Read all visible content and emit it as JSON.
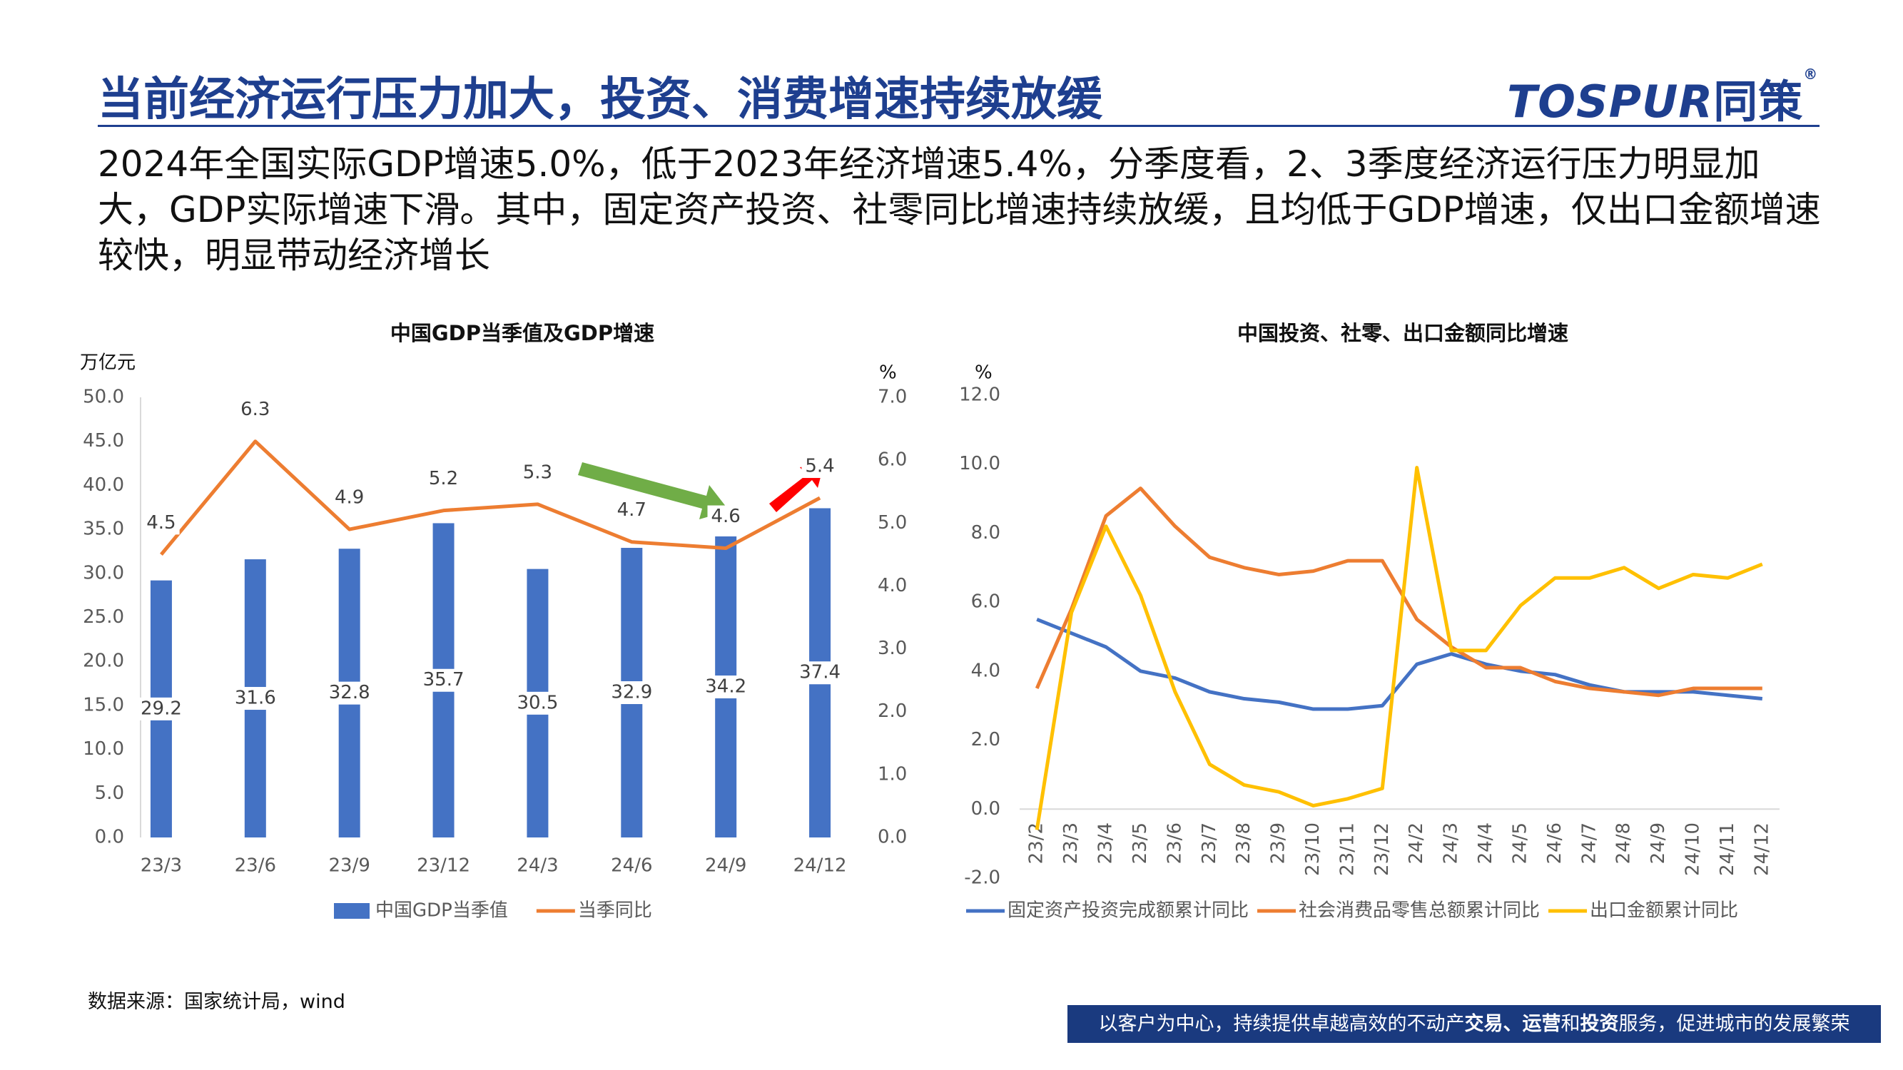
{
  "title": "当前经济运行压力加大，投资、消费增速持续放缓",
  "logo": {
    "text": "TOSPUR",
    "cn": "同策",
    "mark": "®"
  },
  "body": "2024年全国实际GDP增速5.0%，低于2023年经济增速5.4%，分季度看，2、3季度经济运行压力明显加大，GDP实际增速下滑。其中，固定资产投资、社零同比增速持续放缓，且均低于GDP增速，仅出口金额增速较快，明显带动经济增长",
  "chart_data": [
    {
      "type": "combo",
      "title": "中国GDP当季值及GDP增速",
      "y_label": "万亿元",
      "y2_label": "%",
      "categories": [
        "23/3",
        "23/6",
        "23/9",
        "23/12",
        "24/3",
        "24/6",
        "24/9",
        "24/12"
      ],
      "series": [
        {
          "name": "中国GDP当季值",
          "type": "bar",
          "color": "#4472c4",
          "values": [
            29.2,
            31.6,
            32.8,
            35.7,
            30.5,
            32.9,
            34.2,
            37.4
          ]
        },
        {
          "name": "当季同比",
          "type": "line",
          "axis": "y2",
          "color": "#ed7d31",
          "values": [
            4.5,
            6.3,
            4.9,
            5.2,
            5.3,
            4.7,
            4.6,
            5.4
          ]
        }
      ],
      "ylim": [
        0,
        50
      ],
      "yticks": [
        {
          "value": 0,
          "label": "0.0"
        },
        {
          "value": 5,
          "label": "5.0"
        },
        {
          "value": 10,
          "label": "10.0"
        },
        {
          "value": 15,
          "label": "15.0"
        },
        {
          "value": 20,
          "label": "20.0"
        },
        {
          "value": 25,
          "label": "25.0"
        },
        {
          "value": 30,
          "label": "30.0"
        },
        {
          "value": 35,
          "label": "35.0"
        },
        {
          "value": 40,
          "label": "40.0"
        },
        {
          "value": 45,
          "label": "45.0"
        },
        {
          "value": 50,
          "label": "50.0"
        }
      ],
      "y2lim": [
        0,
        7
      ],
      "y2ticks": [
        {
          "value": 0,
          "label": "0.0"
        },
        {
          "value": 1,
          "label": "1.0"
        },
        {
          "value": 2,
          "label": "2.0"
        },
        {
          "value": 3,
          "label": "3.0"
        },
        {
          "value": 4,
          "label": "4.0"
        },
        {
          "value": 5,
          "label": "5.0"
        },
        {
          "value": 6,
          "label": "6.0"
        },
        {
          "value": 7,
          "label": "7.0"
        }
      ],
      "grid": false,
      "legend": "bottom"
    },
    {
      "type": "line",
      "title": "中国投资、社零、出口金额同比增速",
      "y_label": "%",
      "categories": [
        "23/2",
        "23/3",
        "23/4",
        "23/5",
        "23/6",
        "23/7",
        "23/8",
        "23/9",
        "23/10",
        "23/11",
        "23/12",
        "24/2",
        "24/3",
        "24/4",
        "24/5",
        "24/6",
        "24/7",
        "24/8",
        "24/9",
        "24/10",
        "24/11",
        "24/12"
      ],
      "series": [
        {
          "name": "固定资产投资完成额累计同比",
          "color": "#4472c4",
          "values": [
            5.5,
            5.1,
            4.7,
            4.0,
            3.8,
            3.4,
            3.2,
            3.1,
            2.9,
            2.9,
            3.0,
            4.2,
            4.5,
            4.2,
            4.0,
            3.9,
            3.6,
            3.4,
            3.4,
            3.4,
            3.3,
            3.2
          ]
        },
        {
          "name": "社会消费品零售总额累计同比",
          "color": "#ed7d31",
          "values": [
            3.5,
            5.8,
            8.5,
            9.3,
            8.2,
            7.3,
            7.0,
            6.8,
            6.9,
            7.2,
            7.2,
            5.5,
            4.7,
            4.1,
            4.1,
            3.7,
            3.5,
            3.4,
            3.3,
            3.5,
            3.5,
            3.5
          ]
        },
        {
          "name": "出口金额累计同比",
          "color": "#ffc000",
          "values": [
            -0.6,
            5.7,
            8.2,
            6.2,
            3.4,
            1.3,
            0.7,
            0.5,
            0.1,
            0.3,
            0.6,
            9.9,
            4.6,
            4.6,
            5.9,
            6.7,
            6.7,
            7.0,
            6.4,
            6.8,
            6.7,
            7.1
          ]
        }
      ],
      "ylim": [
        -2,
        12
      ],
      "yticks": [
        {
          "value": -2,
          "label": "-2.0"
        },
        {
          "value": 0,
          "label": "0.0"
        },
        {
          "value": 2,
          "label": "2.0"
        },
        {
          "value": 4,
          "label": "4.0"
        },
        {
          "value": 6,
          "label": "6.0"
        },
        {
          "value": 8,
          "label": "8.0"
        },
        {
          "value": 10,
          "label": "10.0"
        },
        {
          "value": 12,
          "label": "12.0"
        }
      ],
      "grid": false,
      "legend": "bottom"
    }
  ],
  "source": "数据来源：国家统计局，wind",
  "footer": [
    {
      "text": "以客户为中心，持续提供卓越高效的不动产",
      "bold": false
    },
    {
      "text": "交易、运营",
      "bold": true
    },
    {
      "text": "和",
      "bold": false
    },
    {
      "text": "投资",
      "bold": true
    },
    {
      "text": "服务，促进城市的发展繁荣",
      "bold": false
    }
  ]
}
